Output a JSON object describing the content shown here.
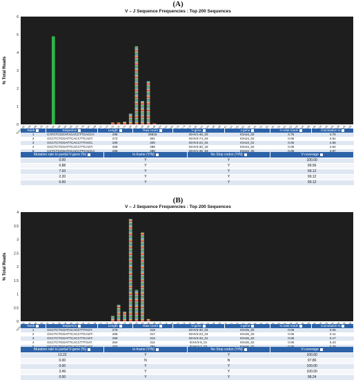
{
  "panels": [
    {
      "label": "(A)",
      "chart_title": "V – J Sequence Frequencies : Top 200 Sequences",
      "ylabel": "% Total Reads",
      "yticks": [
        "0",
        "1",
        "2",
        "3",
        "4",
        "5",
        "6"
      ],
      "xticks": [
        "IGHV1-02",
        "IGHV1-03",
        "IGHV1-08",
        "IGHV1-18",
        "IGHV1-24",
        "IGHV1-46",
        "IGHV1-58",
        "IGHV1-69",
        "IGHV2-05",
        "IGHV2-26",
        "IGHV2-70",
        "IGHV3-07",
        "IGHV3-09",
        "IGHV3-11",
        "IGHV3-13",
        "IGHV3-15",
        "IGHV3-21",
        "IGHV3-23",
        "IGHV3-30",
        "IGHV3-33",
        "IGHV3-43",
        "IGHV3-48",
        "IGHV3-49",
        "IGHV3-53",
        "IGHV3-64",
        "IGHV3-66",
        "IGHV3-72",
        "IGHV3-73",
        "IGHV3-74",
        "IGHV4-04",
        "IGHV4-31",
        "IGHV4-34",
        "IGHV4-39",
        "IGHV4-59",
        "IGHV4-61",
        "IGHV5-51",
        "IGHV6-01",
        "IGHV7-81",
        "IGHJ1_01",
        "IGHJ2_01",
        "IGHJ3_01",
        "IGHJ4_01",
        "IGHJ5_01",
        "IGHJ6_01",
        "IGHD1-01",
        "IGHD2-02",
        "IGHD3-03",
        "IGHD4-04",
        "IGHD5-05",
        "IGHD6-06",
        "IGHV3-20",
        "IGHV1-45",
        "IGHV7-04",
        "IGHV4-28",
        "IGHV3-35",
        "IGHV3-38"
      ],
      "table_headers": [
        "Rank",
        "Sequence",
        "Length",
        "Raw count",
        "V-gene",
        "J-gene",
        "% total reads",
        "Cumulative %"
      ],
      "rows": [
        [
          "1",
          "CATCTCGGATACACCTTCACCA",
          "295",
          "25615",
          "IGHV1-46_03",
          "IGHJ4_02",
          "4.75",
          "4.75"
        ],
        [
          "2",
          "GCCTCTGGATTCACCTTCAGT.",
          "272",
          "301",
          "IGHV3-74_03",
          "IGHJ4_02",
          "0.06",
          "4.81"
        ],
        [
          "3",
          "GCCTCTGGATTCACCTTTAGC.",
          "290",
          "300",
          "IGHV3-23_04",
          "IGHJ3_01",
          "0.06",
          "4.86"
        ],
        [
          "4",
          "GCCTCTGGATTCACCTTCAGT.",
          "269",
          "298",
          "IGHV3-30_18",
          "IGHJ4_02",
          "0.06",
          "4.92"
        ],
        [
          "5",
          "CCTCTCGGATACACCTTCACCA",
          "295",
          "289",
          "IGHV1-46_03",
          "IGHJ4_02",
          "0.05",
          "4.97"
        ]
      ],
      "mut_headers": [
        "Mutation rate to partial V-gene (%)",
        "In-frame (Y/N)",
        "No Stop codon (Y/N)",
        "V-coverage"
      ],
      "mut_rows": [
        [
          "0.00",
          "Y",
          "Y",
          "100.00"
        ],
        [
          "0.88",
          "Y",
          "Y",
          "99.56"
        ],
        [
          "7.93",
          "Y",
          "Y",
          "99.12"
        ],
        [
          "2.20",
          "Y",
          "Y",
          "99.12"
        ],
        [
          "0.00",
          "Y",
          "Y",
          "99.12"
        ]
      ]
    },
    {
      "label": "(B)",
      "chart_title": "V – J Sequence Frequencies : Top 200 Sequences",
      "ylabel": "% Total Reads",
      "yticks": [
        "0",
        "0.5",
        "1",
        "1.5",
        "2",
        "2.5",
        "3",
        "3.5",
        "4"
      ],
      "xticks": [
        "IGHV1-02",
        "IGHV1-03",
        "IGHV1-08",
        "IGHV1-18",
        "IGHV1-24",
        "IGHV1-46",
        "IGHV1-58",
        "IGHV1-69",
        "IGHV2-05",
        "IGHV2-26",
        "IGHV2-70",
        "IGHV3-07",
        "IGHV3-09",
        "IGHV3-11",
        "IGHV3-13",
        "IGHV3-15",
        "IGHV3-21",
        "IGHV3-23",
        "IGHV3-30",
        "IGHV3-33",
        "IGHV3-43",
        "IGHV3-48",
        "IGHV3-49",
        "IGHV3-53",
        "IGHV3-64",
        "IGHV3-66",
        "IGHV3-72",
        "IGHV3-73",
        "IGHV3-74",
        "IGHV4-04",
        "IGHV4-31",
        "IGHV4-34",
        "IGHV4-39",
        "IGHV4-59",
        "IGHV4-61",
        "IGHV5-51",
        "IGHV6-01",
        "IGHV7-81",
        "IGHJ1_01",
        "IGHJ2_01",
        "IGHJ3_01",
        "IGHJ4_01",
        "IGHJ5_01",
        "IGHJ6_01",
        "IGHD1-01",
        "IGHD2-02",
        "IGHD3-03",
        "IGHD4-04",
        "IGHD5-05",
        "IGHD6-06",
        "IGHV3-20",
        "IGHV1-45",
        "IGHV7-04",
        "IGHV4-28",
        "IGHV3-35",
        "IGHV3-38"
      ],
      "table_headers": [
        "Rank",
        "Sequence",
        "Length",
        "Raw count",
        "V-gene",
        "J-gene",
        "% total reads",
        "Cumulative %"
      ],
      "rows": [
        [
          "1",
          "GCCTCTGGATACAGCTTTAGT.",
          "278",
          "319",
          "IGHV3-30_04",
          "IGHJ5_02",
          "0.06",
          "0.06"
        ],
        [
          "2",
          "GCCTCTGGATTCACCTTCAGT.",
          "268",
          "317",
          "IGHV3-23_04",
          "IGHJ6_02",
          "0.06",
          "0.11"
        ],
        [
          "3",
          "GCCTCTGGATTCACCTTCAGT.",
          "290",
          "313",
          "IGHV3-33_01",
          "IGHJ6_02",
          "0.06",
          "0.17"
        ],
        [
          "4",
          "GCCTCTGGATTCACCTTTGAT.",
          "284",
          "311",
          "IGHV3-9_01",
          "IGHJ6_02",
          "0.06",
          "0.23"
        ],
        [
          "5",
          "GCCTCTGGATTCACCTTCAGT.",
          "263",
          "294",
          "IGHV3-7_03",
          "IGHJ6_02",
          "0.05",
          "0.28"
        ]
      ],
      "mut_headers": [
        "Mutation rate to partial V-gene (%)",
        "In-frame (Y/N)",
        "No Stop codon (Y/N)",
        "V-coverage"
      ],
      "mut_rows": [
        [
          "13.22",
          "Y",
          "Y",
          "100.00"
        ],
        [
          "0.00",
          "N",
          "N",
          "97.80"
        ],
        [
          "0.00",
          "Y",
          "Y",
          "100.00"
        ],
        [
          "3.49",
          "Y",
          "Y",
          "100.00"
        ],
        [
          "0.00",
          "Y",
          "Y",
          "98.24"
        ]
      ]
    }
  ],
  "chart_data": [
    {
      "type": "bar",
      "title": "V – J Sequence Frequencies : Top 200 Sequences",
      "ylabel": "% Total Reads",
      "ylim": [
        0,
        6
      ],
      "grid": false,
      "background": "#1e1e1e",
      "categories": [
        "IGHV1-02",
        "IGHV1-03",
        "IGHV1-08",
        "IGHV1-18",
        "IGHV1-24",
        "IGHV1-46",
        "IGHV1-58",
        "IGHV1-69",
        "IGHV2-05",
        "IGHV2-26",
        "IGHV2-70",
        "IGHV3-07",
        "IGHV3-09",
        "IGHV3-11",
        "IGHV3-13",
        "IGHV3-15",
        "IGHV3-21",
        "IGHV3-23",
        "IGHV3-30",
        "IGHV3-33",
        "IGHV3-43",
        "IGHV3-48",
        "IGHV3-49",
        "IGHV3-53",
        "IGHV3-64",
        "IGHV3-66",
        "IGHV3-72",
        "IGHV3-73",
        "IGHV3-74",
        "IGHV4-04",
        "IGHV4-31",
        "IGHV4-34",
        "IGHV4-39",
        "IGHV4-59",
        "IGHV4-61",
        "IGHV5-51",
        "IGHV6-01",
        "IGHV7-81",
        "IGHJ1_01",
        "IGHJ2_01",
        "IGHJ3_01",
        "IGHJ4_01",
        "IGHJ5_01",
        "IGHJ6_01",
        "IGHD1-01",
        "IGHD2-02",
        "IGHD3-03",
        "IGHD4-04",
        "IGHD5-05",
        "IGHD6-06",
        "IGHV3-20",
        "IGHV1-45",
        "IGHV7-04",
        "IGHV4-28",
        "IGHV3-35",
        "IGHV3-38"
      ],
      "values": [
        0,
        0,
        0,
        0,
        0,
        4.9,
        0,
        0,
        0,
        0,
        0,
        0,
        0,
        0,
        0,
        0.1,
        0.1,
        0.15,
        0.6,
        4.35,
        1.3,
        2.4,
        0.05,
        0,
        0,
        0,
        0,
        0,
        0,
        0,
        0,
        0,
        0,
        0,
        0,
        0,
        0,
        0,
        0,
        0,
        0,
        0,
        0,
        0,
        0,
        0,
        0,
        0,
        0,
        0,
        0,
        0,
        0,
        0,
        0,
        0
      ],
      "series_colors": {
        "dominant": "#2fb34a",
        "stacked": [
          "#d9534f",
          "#f0ad4e",
          "#5bc0de",
          "#8e8e8e",
          "#5cb85c",
          "#b0b0b0"
        ]
      }
    },
    {
      "type": "bar",
      "title": "V – J Sequence Frequencies : Top 200 Sequences",
      "ylabel": "% Total Reads",
      "ylim": [
        0,
        4
      ],
      "grid": false,
      "background": "#1e1e1e",
      "categories": [
        "IGHV1-02",
        "IGHV1-03",
        "IGHV1-08",
        "IGHV1-18",
        "IGHV1-24",
        "IGHV1-46",
        "IGHV1-58",
        "IGHV1-69",
        "IGHV2-05",
        "IGHV2-26",
        "IGHV2-70",
        "IGHV3-07",
        "IGHV3-09",
        "IGHV3-11",
        "IGHV3-13",
        "IGHV3-15",
        "IGHV3-21",
        "IGHV3-23",
        "IGHV3-30",
        "IGHV3-33",
        "IGHV3-43",
        "IGHV3-48",
        "IGHV3-49",
        "IGHV3-53",
        "IGHV3-64",
        "IGHV3-66",
        "IGHV3-72",
        "IGHV3-73",
        "IGHV3-74",
        "IGHV4-04",
        "IGHV4-31",
        "IGHV4-34",
        "IGHV4-39",
        "IGHV4-59",
        "IGHV4-61",
        "IGHV5-51",
        "IGHV6-01",
        "IGHV7-81",
        "IGHJ1_01",
        "IGHJ2_01",
        "IGHJ3_01",
        "IGHJ4_01",
        "IGHJ5_01",
        "IGHJ6_01",
        "IGHD1-01",
        "IGHD2-02",
        "IGHD3-03",
        "IGHD4-04",
        "IGHD5-05",
        "IGHD6-06",
        "IGHV3-20",
        "IGHV1-45",
        "IGHV7-04",
        "IGHV4-28",
        "IGHV3-35",
        "IGHV3-38"
      ],
      "values": [
        0,
        0,
        0,
        0,
        0,
        0,
        0,
        0,
        0,
        0,
        0,
        0,
        0,
        0,
        0,
        0.2,
        0.6,
        0.35,
        3.75,
        1.15,
        3.25,
        0.08,
        0,
        0,
        0,
        0,
        0,
        0,
        0,
        0,
        0,
        0,
        0,
        0,
        0,
        0,
        0,
        0,
        0,
        0,
        0,
        0,
        0,
        0,
        0,
        0,
        0,
        0,
        0,
        0,
        0,
        0,
        0,
        0,
        0,
        0
      ],
      "series_colors": {
        "stacked": [
          "#d9534f",
          "#f0ad4e",
          "#5bc0de",
          "#8e8e8e",
          "#5cb85c",
          "#b0b0b0"
        ]
      }
    }
  ]
}
